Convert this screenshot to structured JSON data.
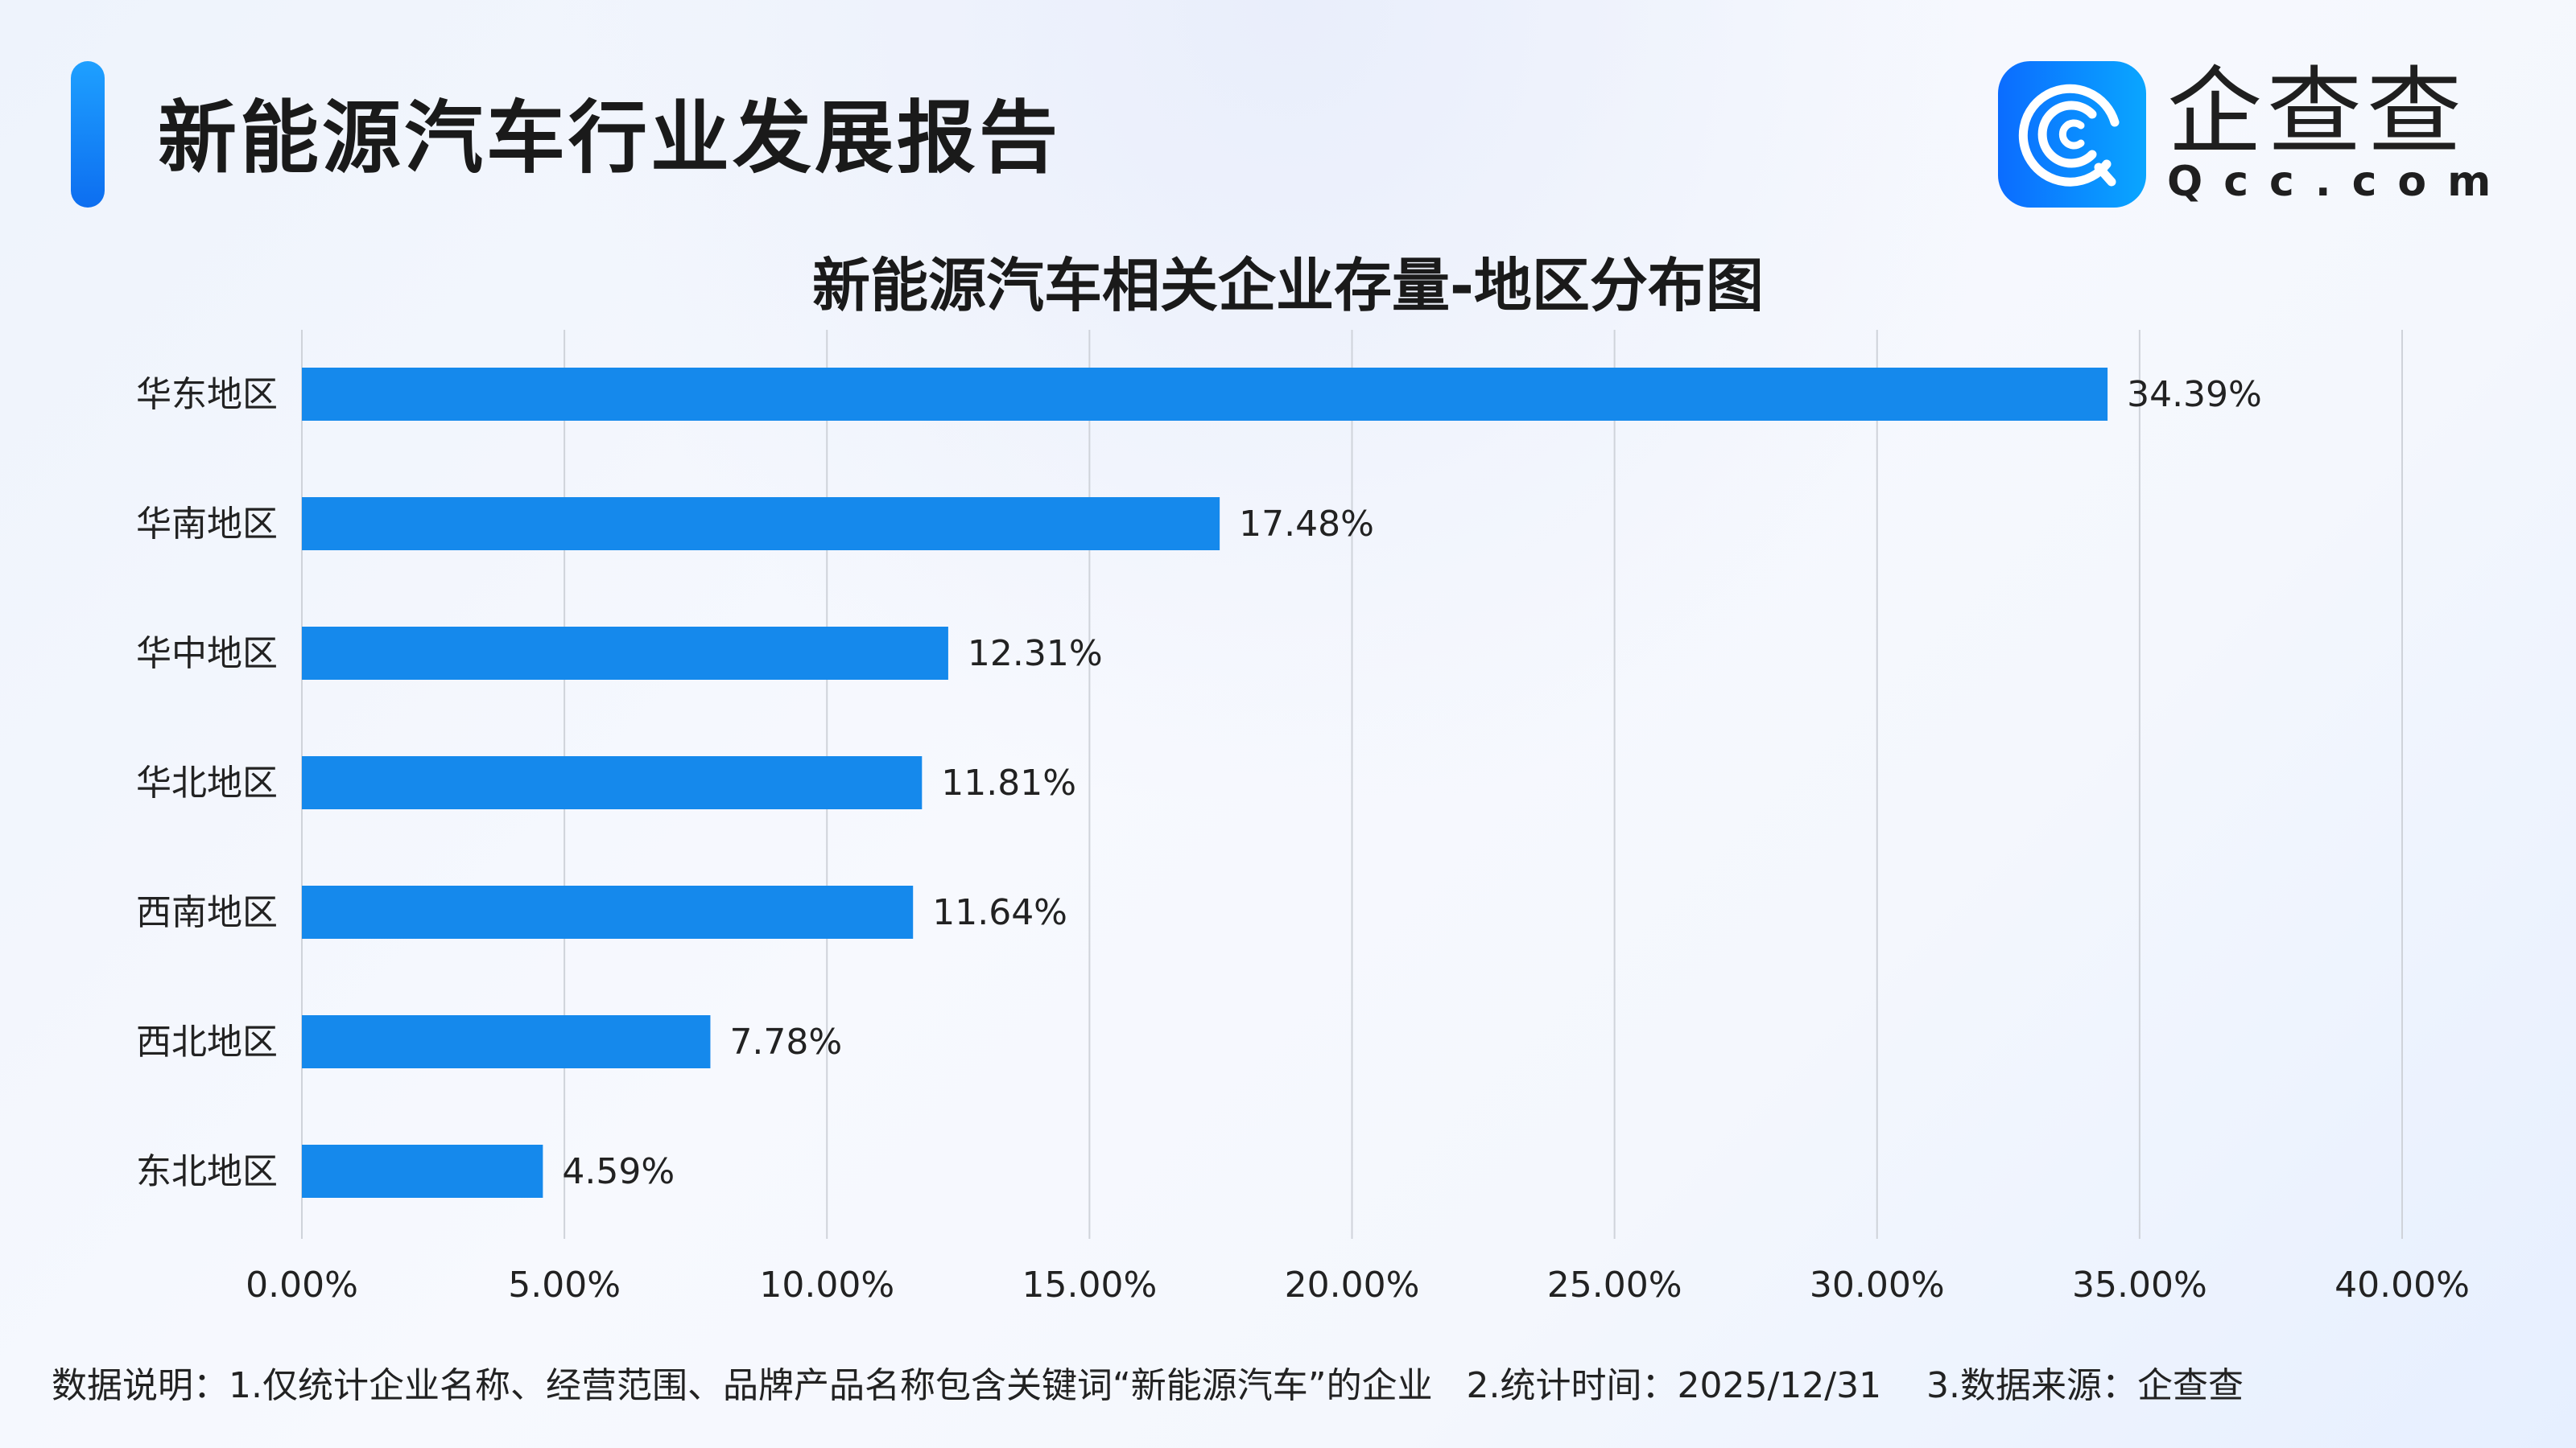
{
  "header": {
    "title": "新能源汽车行业发展报告"
  },
  "logo": {
    "cn": "企查查",
    "en": "Qcc.com"
  },
  "colors": {
    "bar": "#1589EC",
    "accent": "#0d6ef0",
    "grid": "#cfd3da"
  },
  "chart_data": {
    "type": "bar",
    "orientation": "horizontal",
    "title": "新能源汽车相关企业存量-地区分布图",
    "categories": [
      "华东地区",
      "华南地区",
      "华中地区",
      "华北地区",
      "西南地区",
      "西北地区",
      "东北地区"
    ],
    "values": [
      34.39,
      17.48,
      12.31,
      11.81,
      11.64,
      7.78,
      4.59
    ],
    "data_labels": [
      "34.39%",
      "17.48%",
      "12.31%",
      "11.81%",
      "11.64%",
      "7.78%",
      "4.59%"
    ],
    "xticks": [
      "0.00%",
      "5.00%",
      "10.00%",
      "15.00%",
      "20.00%",
      "25.00%",
      "30.00%",
      "35.00%",
      "40.00%"
    ],
    "xlim": [
      0,
      40
    ],
    "grid": true
  },
  "footer": {
    "note": "数据说明：1.仅统计企业名称、经营范围、品牌产品名称包含关键词“新能源汽车”的企业   2.统计时间：2025/12/31    3.数据来源：企查查"
  }
}
